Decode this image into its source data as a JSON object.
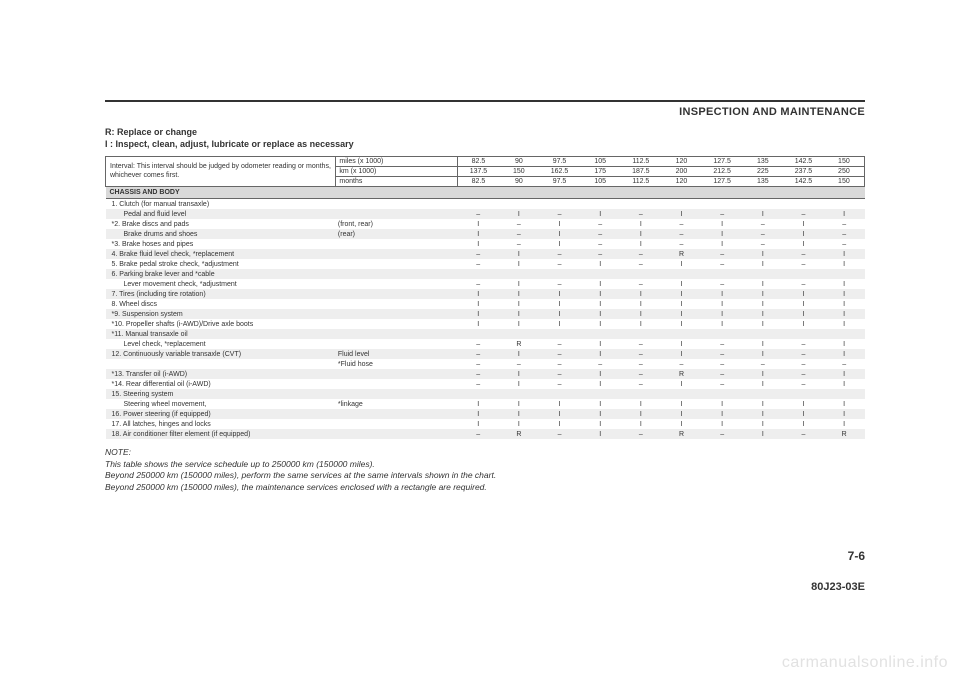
{
  "header": {
    "section_title": "INSPECTION AND MAINTENANCE"
  },
  "legend": {
    "r": "R: Replace or change",
    "i": "I : Inspect, clean, adjust, lubricate or replace as necessary"
  },
  "table": {
    "interval_text": "Interval: This interval should be judged by odometer reading or months, whichever comes first.",
    "units": [
      {
        "label": "miles (x 1000)",
        "values": [
          "82.5",
          "90",
          "97.5",
          "105",
          "112.5",
          "120",
          "127.5",
          "135",
          "142.5",
          "150"
        ]
      },
      {
        "label": "km (x 1000)",
        "values": [
          "137.5",
          "150",
          "162.5",
          "175",
          "187.5",
          "200",
          "212.5",
          "225",
          "237.5",
          "250"
        ]
      },
      {
        "label": "months",
        "values": [
          "82.5",
          "90",
          "97.5",
          "105",
          "112.5",
          "120",
          "127.5",
          "135",
          "142.5",
          "150"
        ]
      }
    ],
    "section_label": "CHASSIS AND BODY",
    "rows": [
      {
        "label": "1. Clutch (for manual transaxle)",
        "note": "",
        "values": [
          "",
          "",
          "",
          "",
          "",
          "",
          "",
          "",
          "",
          ""
        ],
        "shade": "even"
      },
      {
        "label": "Pedal and fluid level",
        "indent": true,
        "note": "",
        "values": [
          "–",
          "I",
          "–",
          "I",
          "–",
          "I",
          "–",
          "I",
          "–",
          "I"
        ],
        "shade": "odd"
      },
      {
        "label": "*2. Brake discs and pads",
        "note": "(front, rear)",
        "values": [
          "I",
          "–",
          "I",
          "–",
          "I",
          "–",
          "I",
          "–",
          "I",
          "–"
        ],
        "shade": "even"
      },
      {
        "label": "Brake drums and shoes",
        "indent": true,
        "note": "(rear)",
        "values": [
          "I",
          "–",
          "I",
          "–",
          "I",
          "–",
          "I",
          "–",
          "I",
          "–"
        ],
        "shade": "odd"
      },
      {
        "label": "*3. Brake hoses and pipes",
        "note": "",
        "values": [
          "I",
          "–",
          "I",
          "–",
          "I",
          "–",
          "I",
          "–",
          "I",
          "–"
        ],
        "shade": "even"
      },
      {
        "label": "4. Brake fluid level check, *replacement",
        "note": "",
        "values": [
          "–",
          "I",
          "–",
          "–",
          "–",
          "R",
          "–",
          "I",
          "–",
          "I"
        ],
        "shade": "odd"
      },
      {
        "label": "5. Brake pedal stroke check, *adjustment",
        "note": "",
        "values": [
          "–",
          "I",
          "–",
          "I",
          "–",
          "I",
          "–",
          "I",
          "–",
          "I"
        ],
        "shade": "even"
      },
      {
        "label": "6. Parking brake lever and *cable",
        "note": "",
        "values": [
          "",
          "",
          "",
          "",
          "",
          "",
          "",
          "",
          "",
          ""
        ],
        "shade": "odd"
      },
      {
        "label": "Lever movement check, *adjustment",
        "indent": true,
        "note": "",
        "values": [
          "–",
          "I",
          "–",
          "I",
          "–",
          "I",
          "–",
          "I",
          "–",
          "I"
        ],
        "shade": "even"
      },
      {
        "label": "7. Tires (including tire rotation)",
        "note": "",
        "values": [
          "I",
          "I",
          "I",
          "I",
          "I",
          "I",
          "I",
          "I",
          "I",
          "I"
        ],
        "shade": "odd"
      },
      {
        "label": "8. Wheel discs",
        "note": "",
        "values": [
          "I",
          "I",
          "I",
          "I",
          "I",
          "I",
          "I",
          "I",
          "I",
          "I"
        ],
        "shade": "even"
      },
      {
        "label": "*9. Suspension system",
        "note": "",
        "values": [
          "I",
          "I",
          "I",
          "I",
          "I",
          "I",
          "I",
          "I",
          "I",
          "I"
        ],
        "shade": "odd"
      },
      {
        "label": "*10. Propeller shafts (i-AWD)/Drive axle boots",
        "note": "",
        "values": [
          "I",
          "I",
          "I",
          "I",
          "I",
          "I",
          "I",
          "I",
          "I",
          "I"
        ],
        "shade": "even"
      },
      {
        "label": "*11. Manual transaxle oil",
        "note": "",
        "values": [
          "",
          "",
          "",
          "",
          "",
          "",
          "",
          "",
          "",
          ""
        ],
        "shade": "odd"
      },
      {
        "label": "Level check, *replacement",
        "indent": true,
        "note": "",
        "values": [
          "–",
          "R",
          "–",
          "I",
          "–",
          "I",
          "–",
          "I",
          "–",
          "I"
        ],
        "shade": "even"
      },
      {
        "label": "12. Continuously variable transaxle (CVT)",
        "note": "Fluid level",
        "values": [
          "–",
          "I",
          "–",
          "I",
          "–",
          "I",
          "–",
          "I",
          "–",
          "I"
        ],
        "shade": "odd"
      },
      {
        "label": "",
        "note": "*Fluid hose",
        "values": [
          "–",
          "–",
          "–",
          "–",
          "–",
          "–",
          "–",
          "–",
          "–",
          "–"
        ],
        "shade": "even"
      },
      {
        "label": "*13. Transfer oil (i-AWD)",
        "note": "",
        "values": [
          "–",
          "I",
          "–",
          "I",
          "–",
          "R",
          "–",
          "I",
          "–",
          "I"
        ],
        "shade": "odd"
      },
      {
        "label": "*14. Rear differential oil (i-AWD)",
        "note": "",
        "values": [
          "–",
          "I",
          "–",
          "I",
          "–",
          "I",
          "–",
          "I",
          "–",
          "I"
        ],
        "shade": "even"
      },
      {
        "label": "15. Steering system",
        "note": "",
        "values": [
          "",
          "",
          "",
          "",
          "",
          "",
          "",
          "",
          "",
          ""
        ],
        "shade": "odd"
      },
      {
        "label": "Steering wheel movement,",
        "indent": true,
        "note": "*linkage",
        "values": [
          "I",
          "I",
          "I",
          "I",
          "I",
          "I",
          "I",
          "I",
          "I",
          "I"
        ],
        "shade": "even"
      },
      {
        "label": "16. Power steering (if equipped)",
        "note": "",
        "values": [
          "I",
          "I",
          "I",
          "I",
          "I",
          "I",
          "I",
          "I",
          "I",
          "I"
        ],
        "shade": "odd"
      },
      {
        "label": "17. All latches, hinges and locks",
        "note": "",
        "values": [
          "I",
          "I",
          "I",
          "I",
          "I",
          "I",
          "I",
          "I",
          "I",
          "I"
        ],
        "shade": "even"
      },
      {
        "label": "18. Air conditioner filter element (if equipped)",
        "note": "",
        "values": [
          "–",
          "R",
          "–",
          "I",
          "–",
          "R",
          "–",
          "I",
          "–",
          "R"
        ],
        "shade": "odd"
      }
    ]
  },
  "note": {
    "head": "NOTE:",
    "lines": [
      "This table shows the service schedule up to 250000 km (150000 miles).",
      "Beyond 250000 km (150000 miles), perform the same services at the same intervals shown in the chart.",
      "Beyond 250000 km (150000 miles), the maintenance services enclosed with a rectangle are required."
    ]
  },
  "footer": {
    "page_num": "7-6",
    "doc_code": "80J23-03E",
    "watermark": "carmanualsonline.info"
  },
  "style": {
    "col_widths": {
      "label": "170px",
      "note": "90px",
      "val": "30px"
    }
  }
}
